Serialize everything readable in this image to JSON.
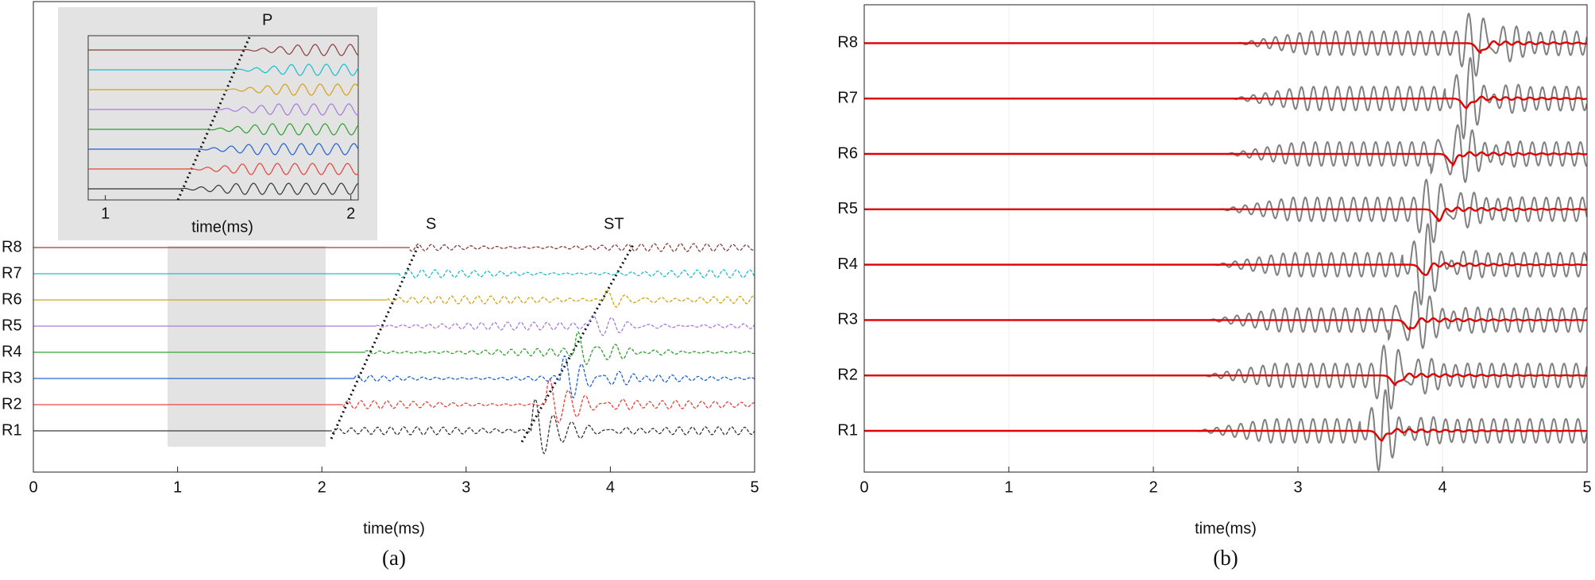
{
  "chart_data": [
    {
      "type": "line",
      "caption": "(a)",
      "xlabel": "time(ms)",
      "xlim": [
        0,
        5
      ],
      "xticks": [
        0,
        1,
        2,
        3,
        4,
        5
      ],
      "categories": [
        "R1",
        "R2",
        "R3",
        "R4",
        "R5",
        "R6",
        "R7",
        "R8"
      ],
      "series": [
        {
          "name": "R1",
          "color": "#333333"
        },
        {
          "name": "R2",
          "color": "#e8403a"
        },
        {
          "name": "R3",
          "color": "#1f5fd6"
        },
        {
          "name": "R4",
          "color": "#2ca02c"
        },
        {
          "name": "R5",
          "color": "#a678de"
        },
        {
          "name": "R6",
          "color": "#d4a017"
        },
        {
          "name": "R7",
          "color": "#17becf"
        },
        {
          "name": "R8",
          "color": "#8b3a3a"
        }
      ],
      "annotations": [
        "P",
        "S",
        "ST"
      ],
      "inset": {
        "xlabel": "time(ms)",
        "xlim": [
          0.93,
          2.03
        ],
        "xticks": [
          1,
          2
        ]
      }
    },
    {
      "type": "line",
      "caption": "(b)",
      "xlabel": "time(ms)",
      "xlim": [
        0,
        5
      ],
      "xticks": [
        0,
        1,
        2,
        3,
        4,
        5
      ],
      "grid": true,
      "categories": [
        "R1",
        "R2",
        "R3",
        "R4",
        "R5",
        "R6",
        "R7",
        "R8"
      ],
      "colors": [
        "#808080",
        "#e00000"
      ]
    }
  ]
}
